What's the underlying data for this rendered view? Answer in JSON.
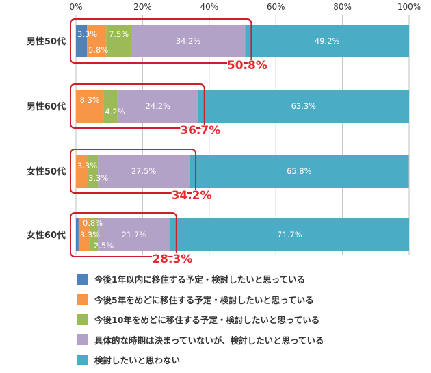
{
  "chart_data": {
    "type": "bar",
    "orientation": "horizontal",
    "stacked": true,
    "title": "",
    "xlabel": "",
    "ylabel": "",
    "xlim": [
      0,
      100
    ],
    "x_ticks": [
      "0%",
      "20%",
      "40%",
      "60%",
      "80%",
      "100%"
    ],
    "grid": true,
    "legend_position": "bottom",
    "categories": [
      "男性50代",
      "男性60代",
      "女性50代",
      "女性60代"
    ],
    "series": [
      {
        "name": "今後1年以内に移住する予定・検討したいと思っている",
        "color": "#4f81bd",
        "values": [
          3.3,
          0,
          0,
          0.8
        ],
        "labels": [
          "3.3%",
          "",
          "",
          "0.8%"
        ]
      },
      {
        "name": "今後5年をめどに移住する予定・検討したいと思っている",
        "color": "#f79646",
        "values": [
          5.8,
          8.3,
          3.3,
          3.3
        ],
        "labels": [
          "5.8%",
          "8.3%",
          "3.3%",
          "3.3%"
        ]
      },
      {
        "name": "今後10年をめどに移住する予定・検討したいと思っている",
        "color": "#9bbb59",
        "values": [
          7.5,
          4.2,
          3.3,
          2.5
        ],
        "labels": [
          "7.5%",
          "4.2%",
          "3.3%",
          "2.5%"
        ]
      },
      {
        "name": "具体的な時期は決まっていないが、検討したいと思っている",
        "color": "#b3a2c7",
        "values": [
          34.2,
          24.2,
          27.5,
          21.7
        ],
        "labels": [
          "34.2%",
          "24.2%",
          "27.5%",
          "21.7%"
        ]
      },
      {
        "name": "検討したいと思わない",
        "color": "#4bacc6",
        "values": [
          49.2,
          63.3,
          65.8,
          71.7
        ],
        "labels": [
          "49.2%",
          "63.3%",
          "65.8%",
          "71.7%"
        ]
      }
    ],
    "annotations": [
      "50.8%",
      "36.7%",
      "34.2%",
      "28.3%"
    ],
    "highlight_color": "#cc1f2a",
    "annotation_color": "#e8292f"
  }
}
